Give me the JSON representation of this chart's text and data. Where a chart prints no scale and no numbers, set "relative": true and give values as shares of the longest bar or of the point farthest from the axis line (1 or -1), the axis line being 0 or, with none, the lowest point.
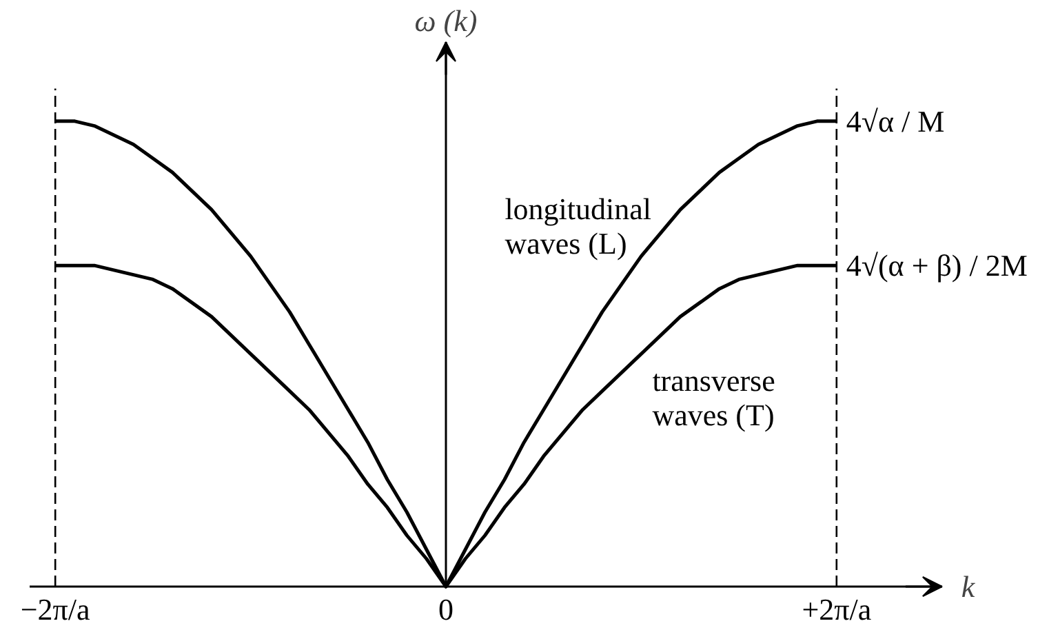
{
  "chart_data": {
    "type": "line",
    "xlabel": "k",
    "ylabel": "ω (k)",
    "relative": true,
    "xlim": [
      -2.13,
      2.54
    ],
    "xticks": [
      {
        "value": -2,
        "label": "−2π/a"
      },
      0,
      {
        "value": 2,
        "label": "+2π/a"
      }
    ],
    "x": [
      -2,
      -1.9,
      -1.8,
      -1.7,
      -1.6,
      -1.5,
      -1.4,
      -1.3,
      -1.2,
      -1.1,
      -1,
      -0.9,
      -0.8,
      -0.7,
      -0.6,
      -0.5,
      -0.4,
      -0.3,
      -0.2,
      -0.1,
      0,
      0.1,
      0.2,
      0.3,
      0.4,
      0.5,
      0.6,
      0.7,
      0.8,
      0.9,
      1,
      1.1,
      1.2,
      1.3,
      1.4,
      1.5,
      1.6,
      1.7,
      1.8,
      1.9,
      2
    ],
    "series": [
      {
        "name": "longitudinal waves (L)",
        "color": "#000000",
        "values": [
          1.0,
          1.0,
          0.99,
          0.97,
          0.95,
          0.92,
          0.89,
          0.85,
          0.81,
          0.76,
          0.71,
          0.65,
          0.59,
          0.52,
          0.45,
          0.38,
          0.31,
          0.23,
          0.16,
          0.08,
          0,
          0.08,
          0.16,
          0.23,
          0.31,
          0.38,
          0.45,
          0.52,
          0.59,
          0.65,
          0.71,
          0.76,
          0.81,
          0.85,
          0.89,
          0.92,
          0.95,
          0.97,
          0.99,
          1.0,
          1.0
        ]
      },
      {
        "name": "transverse waves (T)",
        "color": "#000000",
        "values": [
          0.69,
          0.69,
          0.69,
          0.68,
          0.67,
          0.66,
          0.64,
          0.61,
          0.58,
          0.54,
          0.5,
          0.46,
          0.42,
          0.38,
          0.33,
          0.28,
          0.22,
          0.17,
          0.11,
          0.06,
          0,
          0.06,
          0.11,
          0.17,
          0.22,
          0.28,
          0.33,
          0.38,
          0.42,
          0.46,
          0.5,
          0.54,
          0.58,
          0.61,
          0.64,
          0.66,
          0.67,
          0.68,
          0.69,
          0.69,
          0.69
        ]
      }
    ],
    "ref_lines": [
      {
        "axis": "x",
        "value": -2,
        "line_style": "dashed"
      },
      {
        "axis": "x",
        "value": 2,
        "line_style": "dashed"
      }
    ],
    "annotations": [
      {
        "text": "4√α / M",
        "x": 2,
        "y": 1.0
      },
      {
        "text": "4√(α + β) / 2M",
        "x": 2,
        "y": 0.69
      }
    ]
  }
}
